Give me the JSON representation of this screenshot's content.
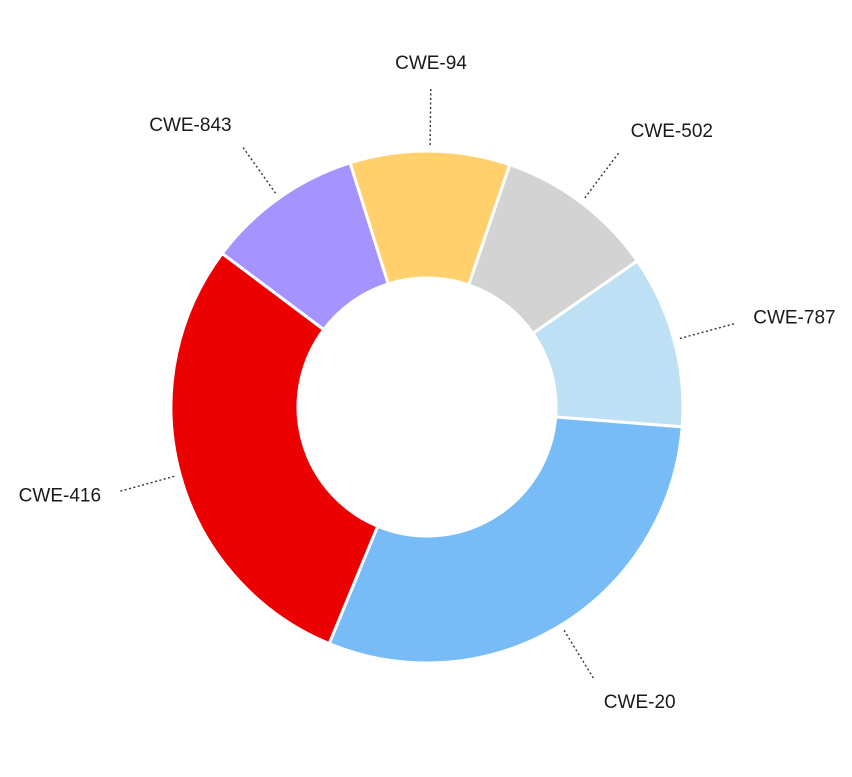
{
  "chart_data": {
    "type": "pie",
    "variant": "donut",
    "title": "",
    "slices": [
      {
        "label": "CWE-94",
        "value": 10.1,
        "color": "#ffd06b"
      },
      {
        "label": "CWE-502",
        "value": 10.1,
        "color": "#d3d3d3"
      },
      {
        "label": "CWE-787",
        "value": 10.9,
        "color": "#bee0f4"
      },
      {
        "label": "CWE-20",
        "value": 30.0,
        "color": "#77bcf7"
      },
      {
        "label": "CWE-416",
        "value": 29.0,
        "color": "#ec0000"
      },
      {
        "label": "CWE-843",
        "value": 9.9,
        "color": "#a593ff"
      }
    ],
    "legend": "none"
  }
}
